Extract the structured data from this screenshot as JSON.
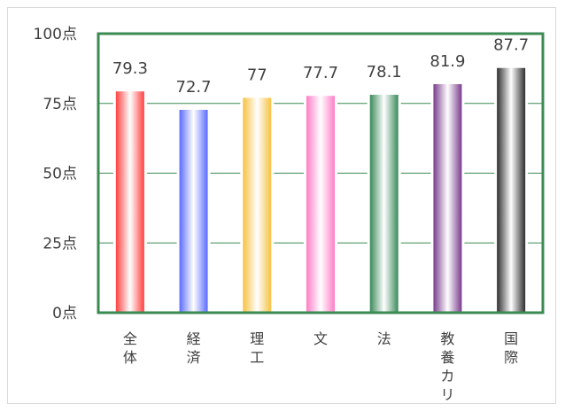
{
  "chart_data": {
    "type": "bar",
    "title": "",
    "xlabel": "",
    "ylabel": "",
    "ylim": [
      0,
      100
    ],
    "yticks": [
      0,
      25,
      50,
      75,
      100
    ],
    "ytick_labels": [
      "0点",
      "25点",
      "50点",
      "75点",
      "100点"
    ],
    "grid": true,
    "categories": [
      "全体",
      "経済",
      "理工",
      "文",
      "法",
      "教養カリ",
      "国際"
    ],
    "values": [
      79.3,
      72.7,
      77,
      77.7,
      78.1,
      81.9,
      87.7
    ],
    "data_labels": [
      "79.3",
      "72.7",
      "77",
      "77.7",
      "78.1",
      "81.9",
      "87.7"
    ],
    "colors": [
      "#ff4040",
      "#5b6cff",
      "#f5c242",
      "#ff7ec8",
      "#3b8a5a",
      "#7a3c8c",
      "#2f2f2f"
    ],
    "frame_color": "#3a8a52"
  }
}
